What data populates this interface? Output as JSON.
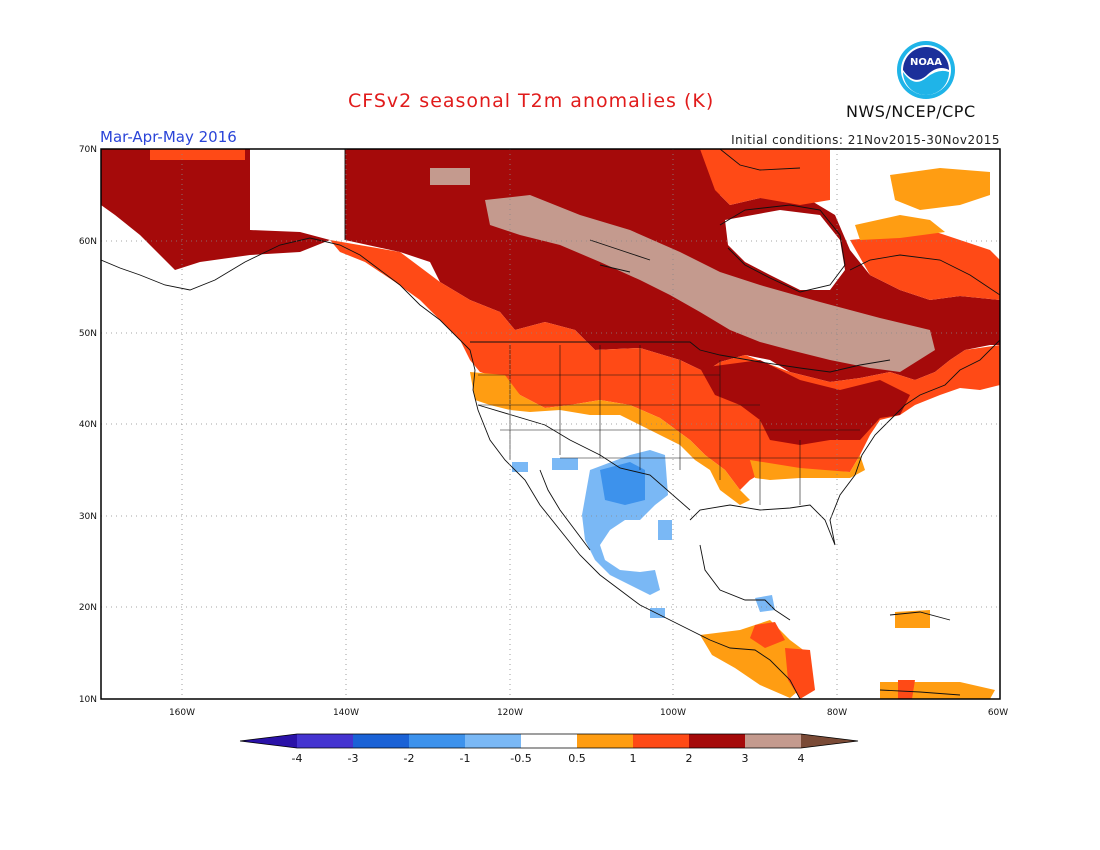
{
  "title": "CFSv2 seasonal T2m anomalies (K)",
  "season": "Mar-Apr-May 2016",
  "initial_conditions": "Initial conditions: 21Nov2015-30Nov2015",
  "agency": "NWS/NCEP/CPC",
  "logo_text": "NOAA",
  "lat_labels": [
    "70N",
    "60N",
    "50N",
    "40N",
    "30N",
    "20N",
    "10N"
  ],
  "lon_labels": [
    "160W",
    "140W",
    "120W",
    "100W",
    "80W",
    "60W"
  ],
  "colorbar": {
    "labels": [
      "-4",
      "-3",
      "-2",
      "-1",
      "-0.5",
      "0.5",
      "1",
      "2",
      "3",
      "4"
    ],
    "colors": [
      "#2a12a8",
      "#4434d0",
      "#1a62d6",
      "#3d92ec",
      "#7ab8f5",
      "#ffffff",
      "#ff9d12",
      "#ff4a16",
      "#a50a0a",
      "#c49a8e",
      "#7a4a36"
    ]
  }
}
